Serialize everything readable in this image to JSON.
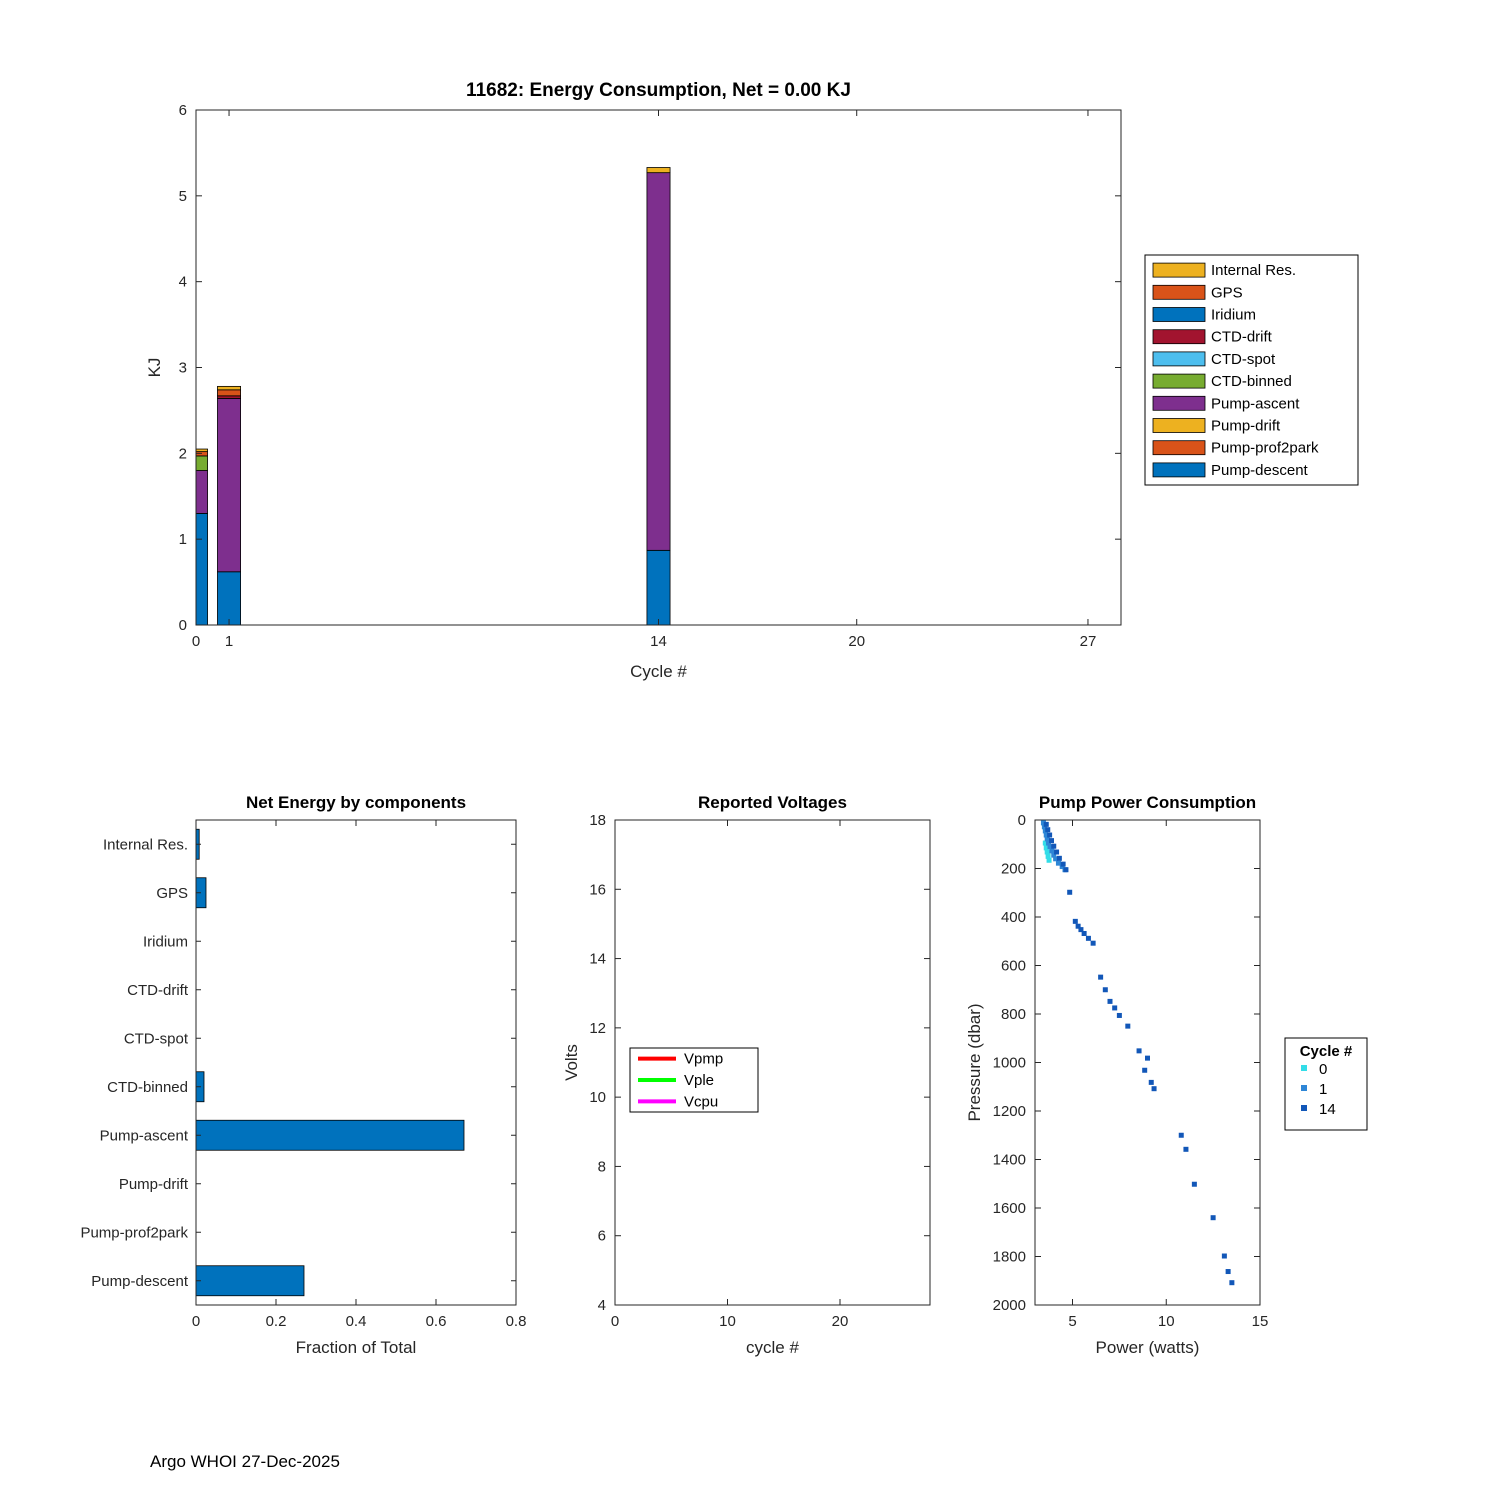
{
  "footer": {
    "text": "Argo WHOI 27-Dec-2025"
  },
  "chart_data": [
    {
      "id": "energy",
      "type": "stacked_bar",
      "title": "11682: Energy Consumption,  Net =   0.00 KJ",
      "xlabel": "Cycle #",
      "ylabel": "KJ",
      "xlim": [
        0,
        28
      ],
      "ylim": [
        0,
        6
      ],
      "xticks": [
        0,
        1,
        14,
        20,
        27
      ],
      "yticks": [
        0,
        1,
        2,
        3,
        4,
        5,
        6
      ],
      "bar_width": 0.7,
      "legend_position": "outside-right",
      "components": [
        {
          "name": "Internal Res.",
          "color": "#EDB120"
        },
        {
          "name": "GPS",
          "color": "#D95319"
        },
        {
          "name": "Iridium",
          "color": "#0072BD"
        },
        {
          "name": "CTD-drift",
          "color": "#A2142F"
        },
        {
          "name": "CTD-spot",
          "color": "#4DBEEE"
        },
        {
          "name": "CTD-binned",
          "color": "#77AC30"
        },
        {
          "name": "Pump-ascent",
          "color": "#7E2F8E"
        },
        {
          "name": "Pump-drift",
          "color": "#EDB120"
        },
        {
          "name": "Pump-prof2park",
          "color": "#D95319"
        },
        {
          "name": "Pump-descent",
          "color": "#0072BD"
        }
      ],
      "bars": [
        {
          "cycle": 0,
          "segments": [
            {
              "component": "Pump-descent",
              "value": 1.3
            },
            {
              "component": "Pump-ascent",
              "value": 0.5
            },
            {
              "component": "CTD-binned",
              "value": 0.17
            },
            {
              "component": "GPS",
              "value": 0.05
            },
            {
              "component": "Internal Res.",
              "value": 0.03
            }
          ]
        },
        {
          "cycle": 1,
          "segments": [
            {
              "component": "Pump-descent",
              "value": 0.62
            },
            {
              "component": "Pump-ascent",
              "value": 2.02
            },
            {
              "component": "CTD-drift",
              "value": 0.03
            },
            {
              "component": "GPS",
              "value": 0.07
            },
            {
              "component": "Internal Res.",
              "value": 0.04
            }
          ]
        },
        {
          "cycle": 14,
          "segments": [
            {
              "component": "Pump-descent",
              "value": 0.87
            },
            {
              "component": "Pump-ascent",
              "value": 4.4
            },
            {
              "component": "Internal Res.",
              "value": 0.06
            }
          ]
        }
      ]
    },
    {
      "id": "net-energy",
      "type": "barh",
      "title": "Net Energy by components",
      "xlabel": "Fraction of Total",
      "categories": [
        "Internal Res.",
        "GPS",
        "Iridium",
        "CTD-drift",
        "CTD-spot",
        "CTD-binned",
        "Pump-ascent",
        "Pump-drift",
        "Pump-prof2park",
        "Pump-descent"
      ],
      "values": [
        0.008,
        0.025,
        0,
        0,
        0,
        0.02,
        0.67,
        0,
        0,
        0.27
      ],
      "xlim": [
        0,
        0.8
      ],
      "xticks": [
        0,
        0.2,
        0.4,
        0.6,
        0.8
      ],
      "bar_color": "#0072BD"
    },
    {
      "id": "voltages",
      "type": "line",
      "title": "Reported Voltages",
      "xlabel": "cycle #",
      "ylabel": "Volts",
      "xlim": [
        0,
        28
      ],
      "ylim": [
        4,
        18
      ],
      "xticks": [
        0,
        10,
        20
      ],
      "yticks": [
        4,
        6,
        8,
        10,
        12,
        14,
        16,
        18
      ],
      "legend": [
        {
          "name": "Vpmp",
          "color": "#FF0000"
        },
        {
          "name": "Vple",
          "color": "#00FF00"
        },
        {
          "name": "Vcpu",
          "color": "#FF00FF"
        }
      ],
      "series": []
    },
    {
      "id": "pump-power",
      "type": "scatter",
      "title": "Pump Power Consumption",
      "xlabel": "Power (watts)",
      "ylabel": "Pressure (dbar)",
      "xlim": [
        3,
        15
      ],
      "ylim": [
        0,
        2000
      ],
      "y_reversed": true,
      "xticks": [
        5,
        10,
        15
      ],
      "yticks": [
        0,
        200,
        400,
        600,
        800,
        1000,
        1200,
        1400,
        1600,
        1800,
        2000
      ],
      "legend_title": "Cycle #",
      "groups": [
        {
          "name": "0",
          "color": "#33DDE8",
          "points": [
            [
              3.55,
              95
            ],
            [
              3.6,
              115
            ],
            [
              3.65,
              132
            ],
            [
              3.7,
              150
            ],
            [
              3.75,
              166
            ]
          ]
        },
        {
          "name": "1",
          "color": "#2E86D6",
          "points": [
            [
              3.45,
              12
            ],
            [
              3.5,
              28
            ],
            [
              3.55,
              45
            ],
            [
              3.6,
              62
            ],
            [
              3.65,
              78
            ],
            [
              3.72,
              95
            ],
            [
              3.8,
              110
            ],
            [
              3.9,
              128
            ],
            [
              4.0,
              145
            ],
            [
              4.1,
              160
            ],
            [
              4.25,
              178
            ],
            [
              4.45,
              192
            ],
            [
              4.6,
              205
            ]
          ]
        },
        {
          "name": "14",
          "color": "#1257B8",
          "points": [
            [
              3.6,
              18
            ],
            [
              3.68,
              40
            ],
            [
              3.78,
              62
            ],
            [
              3.88,
              85
            ],
            [
              4.0,
              108
            ],
            [
              4.15,
              132
            ],
            [
              4.3,
              158
            ],
            [
              4.5,
              182
            ],
            [
              4.65,
              205
            ],
            [
              4.85,
              298
            ],
            [
              5.15,
              418
            ],
            [
              5.3,
              438
            ],
            [
              5.45,
              452
            ],
            [
              5.62,
              468
            ],
            [
              5.85,
              488
            ],
            [
              6.1,
              508
            ],
            [
              6.5,
              648
            ],
            [
              6.75,
              700
            ],
            [
              7.0,
              748
            ],
            [
              7.25,
              775
            ],
            [
              7.5,
              806
            ],
            [
              7.95,
              850
            ],
            [
              8.55,
              952
            ],
            [
              9.0,
              982
            ],
            [
              8.85,
              1032
            ],
            [
              9.2,
              1082
            ],
            [
              9.35,
              1108
            ],
            [
              10.8,
              1300
            ],
            [
              11.05,
              1358
            ],
            [
              11.5,
              1502
            ],
            [
              12.5,
              1640
            ],
            [
              13.1,
              1798
            ],
            [
              13.3,
              1862
            ],
            [
              13.5,
              1908
            ]
          ]
        }
      ]
    }
  ]
}
